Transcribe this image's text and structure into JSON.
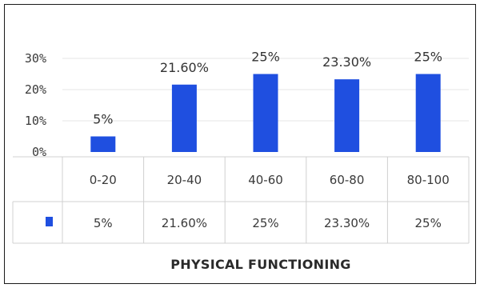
{
  "chart_data": {
    "type": "bar",
    "title": "",
    "xlabel": "PHYSICAL FUNCTIONING",
    "ylabel": "",
    "categories": [
      "0-20",
      "20-40",
      "40-60",
      "60-80",
      "80-100"
    ],
    "series": [
      {
        "values": [
          5,
          21.6,
          25,
          23.3,
          25
        ],
        "labels": [
          "5%",
          "21.60%",
          "25%",
          "23.30%",
          "25%"
        ],
        "color": "#1f4fe0"
      }
    ],
    "yticks": [
      "0%",
      "10%",
      "20%",
      "30%"
    ],
    "ylim": [
      0,
      30
    ],
    "grid": true,
    "legend": "data-table"
  }
}
